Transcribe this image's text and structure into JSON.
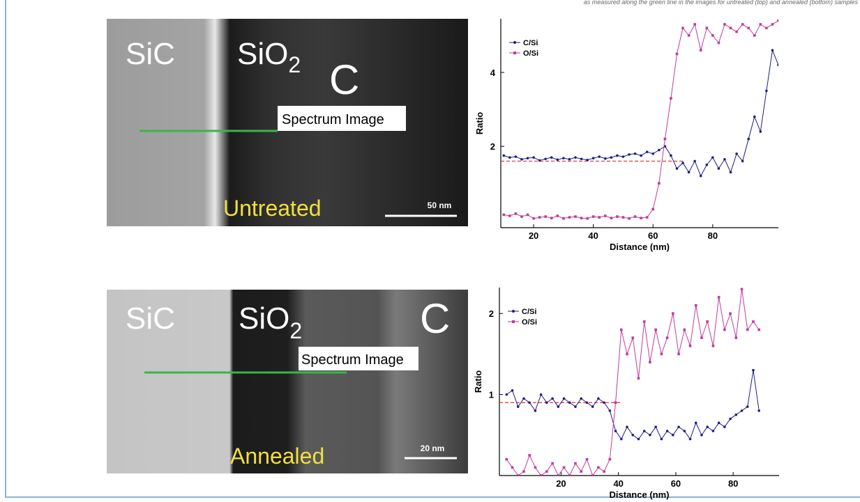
{
  "caption": "as measured along the green line in the images for untreated (top) and annealed (bottom) samples",
  "images": [
    {
      "labels": {
        "sic": "SiC",
        "sio2": {
          "text": "SiO",
          "subscript": "2"
        },
        "c": "C"
      },
      "spectrum": "Spectrum Image",
      "condition": "Untreated",
      "scale_bar": "50 nm"
    },
    {
      "labels": {
        "sic": "SiC",
        "sio2": {
          "text": "SiO",
          "subscript": "2"
        },
        "c": "C"
      },
      "spectrum": "Spectrum Image",
      "condition": "Annealed",
      "scale_bar": "20 nm"
    }
  ],
  "chart_data": [
    {
      "type": "line",
      "x_label": "Distance (nm)",
      "y_label": "Ratio",
      "xlim": [
        9,
        102
      ],
      "ylim": [
        -0.2,
        5.45
      ],
      "xticks": [
        20,
        40,
        60,
        80
      ],
      "yticks": [
        2,
        4
      ],
      "x": [
        10,
        12,
        14,
        16,
        18,
        20,
        22,
        24,
        26,
        28,
        30,
        32,
        34,
        36,
        38,
        40,
        42,
        44,
        46,
        48,
        50,
        52,
        54,
        56,
        58,
        60,
        62,
        64,
        66,
        68,
        70,
        72,
        74,
        76,
        78,
        80,
        82,
        84,
        86,
        88,
        90,
        92,
        94,
        96,
        98,
        100,
        102
      ],
      "series": [
        {
          "name": "C/Si",
          "color": "#1c1c8a",
          "marker": "circle",
          "values": [
            1.75,
            1.7,
            1.72,
            1.65,
            1.68,
            1.7,
            1.62,
            1.66,
            1.7,
            1.64,
            1.68,
            1.65,
            1.7,
            1.66,
            1.63,
            1.68,
            1.72,
            1.67,
            1.7,
            1.75,
            1.72,
            1.78,
            1.8,
            1.75,
            1.85,
            1.8,
            1.9,
            2.0,
            1.75,
            1.4,
            1.55,
            1.3,
            1.6,
            1.2,
            1.5,
            1.7,
            1.4,
            1.65,
            1.3,
            1.8,
            1.6,
            2.2,
            2.8,
            2.4,
            3.5,
            4.6,
            4.2
          ]
        },
        {
          "name": "O/Si",
          "color": "#c03c9c",
          "marker": "square",
          "values": [
            0.15,
            0.12,
            0.18,
            0.1,
            0.15,
            0.05,
            0.08,
            0.1,
            0.06,
            0.12,
            0.05,
            0.08,
            0.1,
            0.06,
            0.05,
            0.1,
            0.08,
            0.12,
            0.06,
            0.1,
            0.08,
            0.05,
            0.1,
            0.06,
            0.08,
            0.3,
            1.0,
            2.2,
            3.3,
            4.5,
            5.2,
            5.0,
            5.3,
            4.6,
            5.2,
            5.0,
            4.8,
            5.3,
            5.2,
            5.1,
            5.3,
            5.2,
            5.0,
            5.3,
            5.2,
            5.3,
            5.4
          ]
        }
      ],
      "reference_line": {
        "y": 1.6,
        "x": [
          9,
          70
        ],
        "color": "#e03020"
      }
    },
    {
      "type": "line",
      "x_label": "Distance (nm)",
      "y_label": "Ratio",
      "xlim": [
        -1.5,
        96
      ],
      "ylim": [
        0,
        2.32
      ],
      "xticks": [
        20,
        40,
        60,
        80
      ],
      "yticks": [
        1,
        2
      ],
      "x": [
        1,
        3,
        5,
        7,
        9,
        11,
        13,
        15,
        17,
        19,
        21,
        23,
        25,
        27,
        29,
        31,
        33,
        35,
        37,
        39,
        41,
        43,
        45,
        47,
        49,
        51,
        53,
        55,
        57,
        59,
        61,
        63,
        65,
        67,
        69,
        71,
        73,
        75,
        77,
        79,
        81,
        83,
        85,
        87,
        89
      ],
      "series": [
        {
          "name": "C/Si",
          "color": "#1c1c8a",
          "marker": "circle",
          "values": [
            1.0,
            1.05,
            0.85,
            0.95,
            0.9,
            0.8,
            1.0,
            0.9,
            0.95,
            0.85,
            0.95,
            0.9,
            0.85,
            0.95,
            0.9,
            0.85,
            0.95,
            0.9,
            0.8,
            0.55,
            0.45,
            0.6,
            0.5,
            0.45,
            0.55,
            0.5,
            0.6,
            0.45,
            0.55,
            0.5,
            0.6,
            0.55,
            0.45,
            0.65,
            0.5,
            0.6,
            0.55,
            0.65,
            0.6,
            0.7,
            0.75,
            0.8,
            0.85,
            1.3,
            0.8
          ]
        },
        {
          "name": "O/Si",
          "color": "#c03c9c",
          "marker": "square",
          "values": [
            0.2,
            0.1,
            0.0,
            0.05,
            0.25,
            0.1,
            0.0,
            0.05,
            0.15,
            0.0,
            0.1,
            0.0,
            0.15,
            0.05,
            0.2,
            0.0,
            0.1,
            0.05,
            0.2,
            0.9,
            1.8,
            1.5,
            1.7,
            1.2,
            1.9,
            1.4,
            1.8,
            1.5,
            1.7,
            2.0,
            1.5,
            1.8,
            1.6,
            2.1,
            1.7,
            1.9,
            1.6,
            2.2,
            1.8,
            2.0,
            1.7,
            2.3,
            1.8,
            1.9,
            1.8
          ]
        }
      ],
      "reference_line": {
        "y": 0.9,
        "x": [
          -1.5,
          41
        ],
        "color": "#e03020"
      }
    }
  ]
}
